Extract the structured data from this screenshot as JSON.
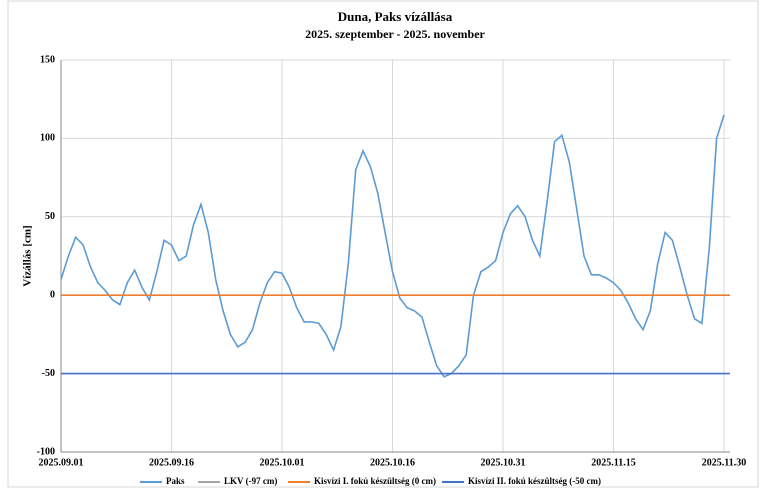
{
  "chart_data": {
    "type": "line",
    "title": "Duna, Paks vízállása",
    "subtitle": "2025. szeptember - 2025. november",
    "y_label": "Vízállás [cm]",
    "x": [
      "2025.09.01",
      "2025.09.02",
      "2025.09.03",
      "2025.09.04",
      "2025.09.05",
      "2025.09.06",
      "2025.09.07",
      "2025.09.08",
      "2025.09.09",
      "2025.09.10",
      "2025.09.11",
      "2025.09.12",
      "2025.09.13",
      "2025.09.14",
      "2025.09.15",
      "2025.09.16",
      "2025.09.17",
      "2025.09.18",
      "2025.09.19",
      "2025.09.20",
      "2025.09.21",
      "2025.09.22",
      "2025.09.23",
      "2025.09.24",
      "2025.09.25",
      "2025.09.26",
      "2025.09.27",
      "2025.09.28",
      "2025.09.29",
      "2025.09.30",
      "2025.10.01",
      "2025.10.02",
      "2025.10.03",
      "2025.10.04",
      "2025.10.05",
      "2025.10.06",
      "2025.10.07",
      "2025.10.08",
      "2025.10.09",
      "2025.10.10",
      "2025.10.11",
      "2025.10.12",
      "2025.10.13",
      "2025.10.14",
      "2025.10.15",
      "2025.10.16",
      "2025.10.17",
      "2025.10.18",
      "2025.10.19",
      "2025.10.20",
      "2025.10.21",
      "2025.10.22",
      "2025.10.23",
      "2025.10.24",
      "2025.10.25",
      "2025.10.26",
      "2025.10.27",
      "2025.10.28",
      "2025.10.29",
      "2025.10.30",
      "2025.10.31",
      "2025.11.01",
      "2025.11.02",
      "2025.11.03",
      "2025.11.04",
      "2025.11.05",
      "2025.11.06",
      "2025.11.07",
      "2025.11.08",
      "2025.11.09",
      "2025.11.10",
      "2025.11.11",
      "2025.11.12",
      "2025.11.13",
      "2025.11.14",
      "2025.11.15",
      "2025.11.16",
      "2025.11.17",
      "2025.11.18",
      "2025.11.19",
      "2025.11.20",
      "2025.11.21",
      "2025.11.22",
      "2025.11.23",
      "2025.11.24",
      "2025.11.25",
      "2025.11.26",
      "2025.11.27",
      "2025.11.28",
      "2025.11.29",
      "2025.11.30"
    ],
    "series": [
      {
        "name": "Paks",
        "color": "#5b9bd5",
        "values": [
          10,
          25,
          37,
          32,
          18,
          8,
          3,
          -3,
          -6,
          8,
          16,
          5,
          -3,
          15,
          35,
          32,
          22,
          25,
          45,
          58,
          40,
          10,
          -10,
          -25,
          -33,
          -30,
          -22,
          -5,
          8,
          15,
          14,
          5,
          -8,
          -17,
          -17,
          -18,
          -25,
          -35,
          -20,
          20,
          80,
          92,
          82,
          65,
          40,
          15,
          -2,
          -8,
          -10,
          -14,
          -30,
          -45,
          -52,
          -50,
          -45,
          -38,
          0,
          15,
          18,
          22,
          40,
          52,
          57,
          50,
          35,
          25,
          60,
          98,
          102,
          85,
          55,
          25,
          13,
          13,
          11,
          8,
          3,
          -5,
          -15,
          -22,
          -10,
          20,
          40,
          35,
          18,
          0,
          -15,
          -18,
          30,
          100,
          115
        ]
      },
      {
        "name": "LKV (-97 cm)",
        "color": "#a5a5a5"
      },
      {
        "name": "Kisvízi I. fokú készültség (0 cm)",
        "color": "#ed7d31",
        "value": 0
      },
      {
        "name": "Kisvízi II. fokú készültség (-50 cm)",
        "color": "#4472c4",
        "value": -50
      }
    ],
    "xlim": [
      "2025.09.01",
      "2025.11.30"
    ],
    "xticks": [
      "2025.09.01",
      "2025.09.16",
      "2025.10.01",
      "2025.10.16",
      "2025.10.31",
      "2025.11.15",
      "2025.11.30"
    ],
    "ylim": [
      -100,
      150
    ],
    "yticks": [
      -100,
      -50,
      0,
      50,
      100,
      150
    ],
    "grid": true,
    "legend": "bottom"
  }
}
